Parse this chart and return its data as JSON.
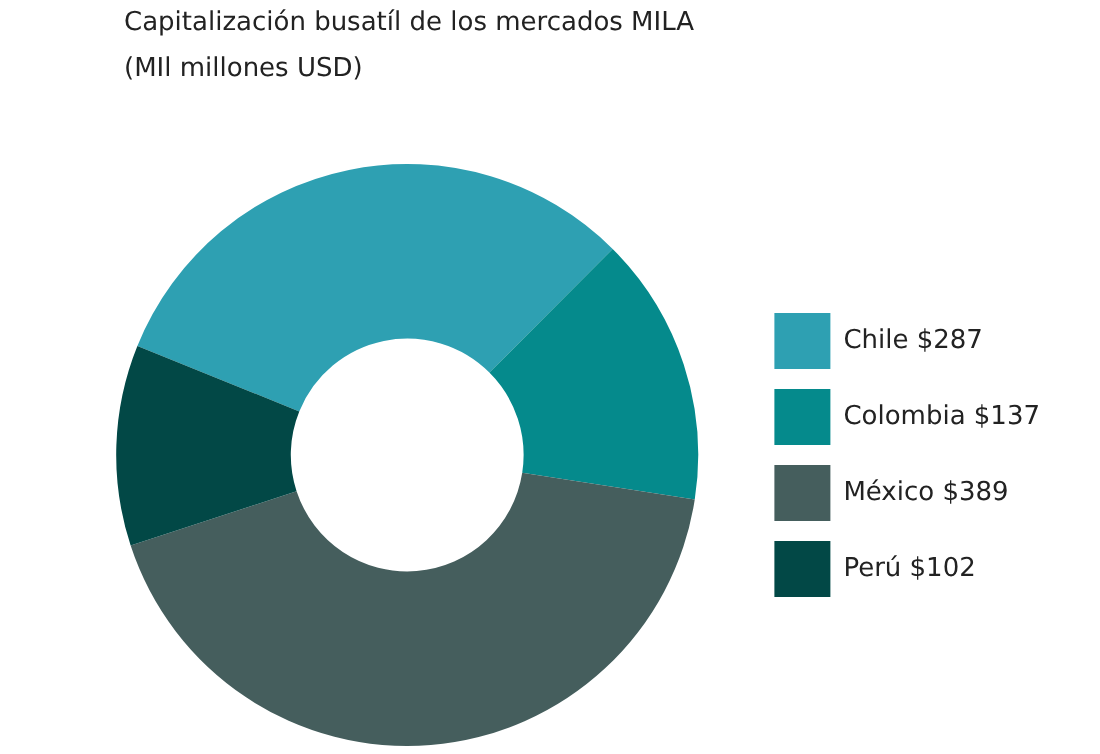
{
  "chart_data": {
    "type": "donut",
    "title": "Capitalización busatíl de los mercados MILA",
    "subtitle": "(MIl millones USD)",
    "categories": [
      "Chile $287",
      "Colombia $137",
      "México $389",
      "Perú $102"
    ],
    "values": [
      287,
      137,
      389,
      102
    ],
    "colors": [
      "#2ea0b2",
      "#058a8c",
      "#455e5d",
      "#024846"
    ],
    "legend": "right"
  }
}
